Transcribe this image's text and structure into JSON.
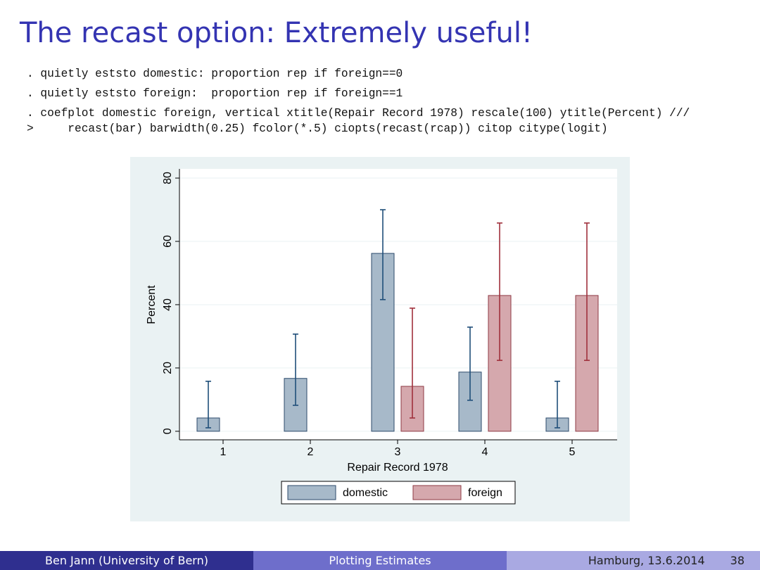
{
  "slide": {
    "title": "The recast option: Extremely useful!",
    "code": [
      ". quietly eststo domestic: proportion rep if foreign==0",
      ". quietly eststo foreign:  proportion rep if foreign==1",
      ". coefplot domestic foreign, vertical xtitle(Repair Record 1978) rescale(100) ytitle(Percent) ///",
      ">     recast(bar) barwidth(0.25) fcolor(*.5) ciopts(recast(rcap)) citop citype(logit)"
    ],
    "footer": [
      "Ben Jann  (University of Bern)",
      "Plotting Estimates",
      "Hamburg, 13.6.2014",
      "38"
    ]
  },
  "chart_data": {
    "type": "bar",
    "x_label": "Repair Record 1978",
    "y_label": "Percent",
    "categories": [
      "1",
      "2",
      "3",
      "4",
      "5"
    ],
    "series": [
      {
        "name": "domestic",
        "color": "#a7b9c9",
        "edge_color": "#2c4a6b",
        "ci_color": "#1f4e79",
        "values": [
          4.2,
          16.7,
          56.2,
          18.7,
          4.2
        ],
        "ci_low": [
          1.1,
          8.2,
          41.6,
          9.8,
          1.1
        ],
        "ci_high": [
          15.8,
          30.7,
          70.0,
          32.9,
          15.8
        ]
      },
      {
        "name": "foreign",
        "color": "#d5a8ad",
        "edge_color": "#8e3a44",
        "ci_color": "#a0303c",
        "values": [
          null,
          null,
          14.2,
          42.9,
          42.9
        ],
        "ci_low": [
          null,
          null,
          4.2,
          22.4,
          22.4
        ],
        "ci_high": [
          null,
          null,
          38.9,
          65.8,
          65.8
        ]
      }
    ],
    "ylim": [
      -2.7,
      82.9
    ],
    "yticks": [
      0,
      20,
      40,
      60,
      80
    ],
    "grid": true
  }
}
